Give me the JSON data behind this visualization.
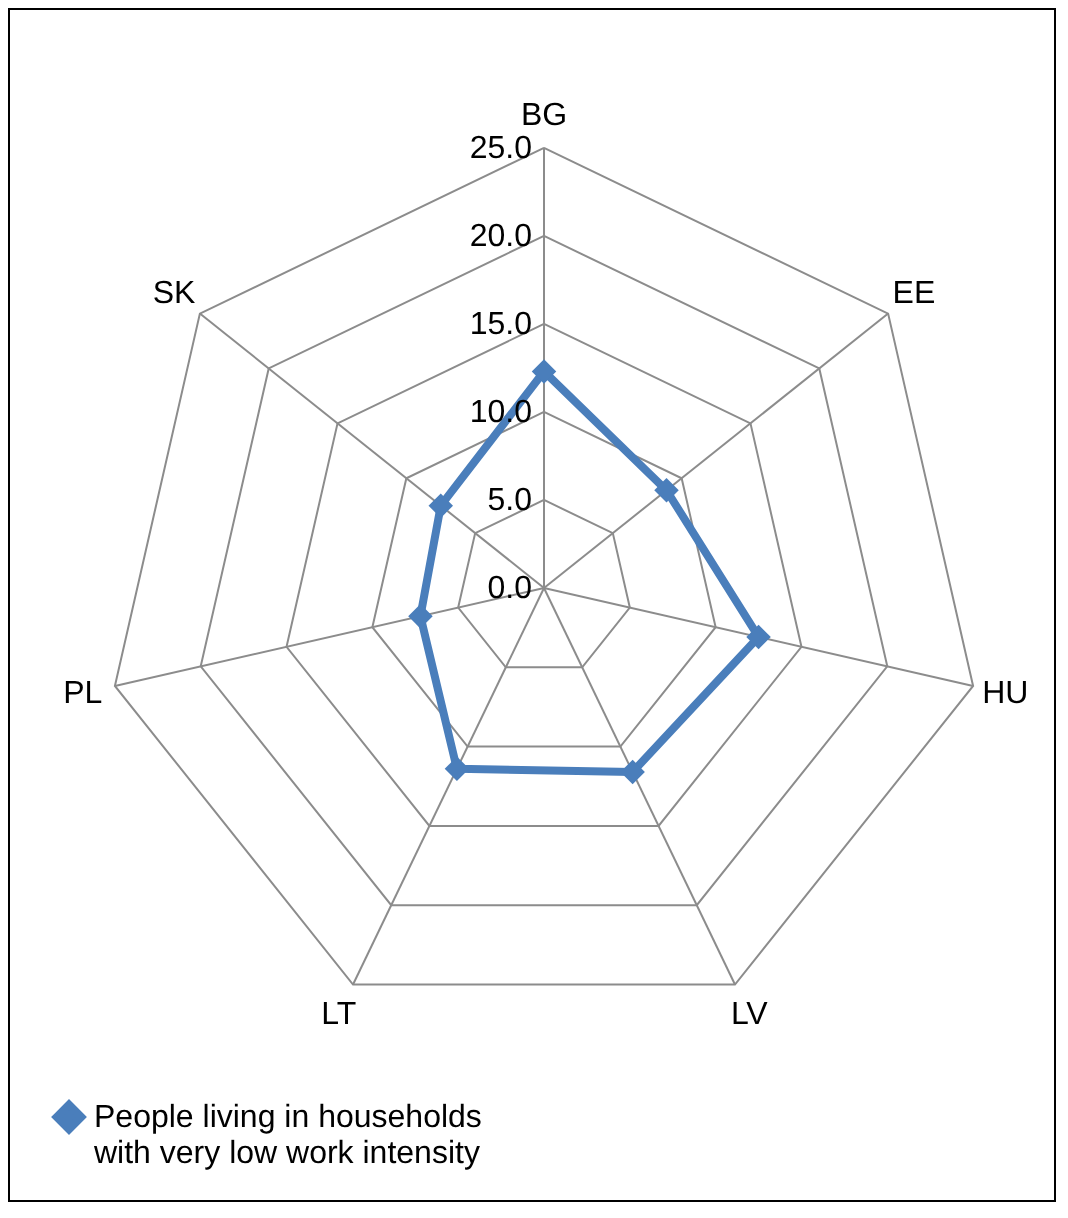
{
  "chart_data": {
    "type": "radar",
    "categories": [
      "BG",
      "EE",
      "HU",
      "LV",
      "LT",
      "PL",
      "SK"
    ],
    "series": [
      {
        "name": "People living in households with very low work intensity",
        "color": "#4a7ebb",
        "values": [
          12.3,
          8.9,
          12.5,
          11.6,
          11.4,
          7.2,
          7.5
        ]
      }
    ],
    "ylim": [
      0,
      25
    ],
    "yticks": [
      {
        "value": 0,
        "label": "0.0"
      },
      {
        "value": 5,
        "label": "5.0"
      },
      {
        "value": 10,
        "label": "10.0"
      },
      {
        "value": 15,
        "label": "15.0"
      },
      {
        "value": 20,
        "label": "20.0"
      },
      {
        "value": 25,
        "label": "25.0"
      }
    ],
    "grid": true,
    "legend": "bottom",
    "marker": "diamond",
    "line_style": "solid"
  }
}
